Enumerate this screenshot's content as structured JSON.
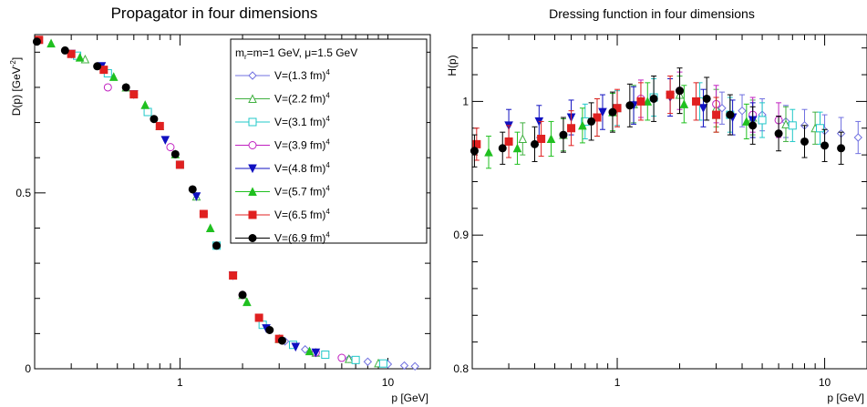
{
  "chart_data": [
    {
      "type": "scatter",
      "title": "Propagator in four dimensions",
      "xlabel": "p [GeV]",
      "ylabel_main": "D(p) [GeV",
      "ylabel_sup": "-2",
      "ylabel_end": "]",
      "x_scale": "log",
      "xlim": [
        0.2,
        16
      ],
      "ylim": [
        0,
        0.95
      ],
      "xticks": [
        {
          "v": 1,
          "label": "1"
        },
        {
          "v": 10,
          "label": "10"
        }
      ],
      "yticks": [
        {
          "v": 0,
          "label": "0"
        },
        {
          "v": 0.5,
          "label": "0.5"
        }
      ],
      "legend_position": "top-right",
      "legend_header": "m",
      "legend_header_sub": "r",
      "legend_header_rest": "=m=1 GeV, μ=1.5 GeV",
      "series": [
        {
          "name": "V=(1.3 fm)",
          "sup": "4",
          "color": "#7070e0",
          "marker": "diamond-open",
          "x": [
            3.2,
            4.0,
            5.0,
            6.5,
            8.0,
            10.0,
            12.0,
            13.5
          ],
          "y": [
            0.078,
            0.055,
            0.04,
            0.028,
            0.02,
            0.013,
            0.009,
            0.007
          ]
        },
        {
          "name": "V=(2.2 fm)",
          "sup": "4",
          "color": "#40b040",
          "marker": "triangle-open",
          "x": [
            0.35,
            0.55,
            0.8,
            1.2,
            2.0,
            3.0,
            4.5,
            6.5,
            9.0
          ],
          "y": [
            0.88,
            0.8,
            0.69,
            0.49,
            0.21,
            0.085,
            0.046,
            0.028,
            0.016
          ]
        },
        {
          "name": "V=(3.1 fm)",
          "sup": "4",
          "color": "#20c8c8",
          "marker": "square-open",
          "x": [
            0.32,
            0.45,
            0.7,
            1.0,
            1.5,
            2.5,
            3.5,
            5.0,
            7.0,
            9.5
          ],
          "y": [
            0.89,
            0.84,
            0.73,
            0.58,
            0.35,
            0.125,
            0.068,
            0.04,
            0.025,
            0.015
          ]
        },
        {
          "name": "V=(3.9 fm)",
          "sup": "4",
          "color": "#c020c0",
          "marker": "circle-open",
          "x": [
            0.45,
            0.6,
            0.9,
            1.3,
            2.0,
            3.0,
            4.5,
            6.0
          ],
          "y": [
            0.8,
            0.78,
            0.63,
            0.44,
            0.21,
            0.085,
            0.046,
            0.031
          ]
        },
        {
          "name": "V=(4.8 fm)",
          "sup": "4",
          "color": "#1010c0",
          "marker": "triangle-down",
          "x": [
            0.3,
            0.42,
            0.6,
            0.85,
            1.2,
            1.8,
            2.6,
            3.6,
            4.5
          ],
          "y": [
            0.895,
            0.86,
            0.78,
            0.65,
            0.49,
            0.265,
            0.115,
            0.062,
            0.046
          ]
        },
        {
          "name": "V=(5.7 fm)",
          "sup": "4",
          "color": "#20c020",
          "marker": "triangle-up",
          "x": [
            0.24,
            0.33,
            0.48,
            0.68,
            0.95,
            1.4,
            2.1,
            3.0,
            4.2
          ],
          "y": [
            0.925,
            0.885,
            0.83,
            0.75,
            0.61,
            0.4,
            0.19,
            0.085,
            0.05
          ]
        },
        {
          "name": "V=(6.5 fm)",
          "sup": "4",
          "color": "#e02020",
          "marker": "square",
          "x": [
            0.21,
            0.3,
            0.43,
            0.6,
            0.8,
            1.0,
            1.3,
            1.8,
            2.4,
            3.0
          ],
          "y": [
            0.935,
            0.895,
            0.85,
            0.78,
            0.69,
            0.58,
            0.44,
            0.265,
            0.145,
            0.085
          ]
        },
        {
          "name": "V=(6.9 fm)",
          "sup": "4",
          "color": "#000000",
          "marker": "circle",
          "x": [
            0.205,
            0.28,
            0.4,
            0.55,
            0.75,
            0.95,
            1.15,
            1.5,
            2.0,
            2.7,
            3.1
          ],
          "y": [
            0.93,
            0.905,
            0.86,
            0.8,
            0.71,
            0.61,
            0.51,
            0.35,
            0.21,
            0.11,
            0.08
          ]
        }
      ]
    },
    {
      "type": "scatter",
      "title": "Dressing function in four dimensions",
      "xlabel": "p [GeV]",
      "ylabel": "H(p)",
      "x_scale": "log",
      "xlim": [
        0.2,
        16
      ],
      "ylim": [
        0.8,
        1.05
      ],
      "xticks": [
        {
          "v": 1,
          "label": "1"
        },
        {
          "v": 10,
          "label": "10"
        }
      ],
      "yticks": [
        {
          "v": 0.8,
          "label": "0.8"
        },
        {
          "v": 0.9,
          "label": "0.9"
        },
        {
          "v": 1.0,
          "label": "1"
        }
      ],
      "series": [
        {
          "color": "#7070e0",
          "marker": "diamond-open",
          "x": [
            3.2,
            4.0,
            5.0,
            6.5,
            8.0,
            10.0,
            12.0,
            14.5
          ],
          "y": [
            0.995,
            0.993,
            0.99,
            0.985,
            0.982,
            0.978,
            0.976,
            0.973
          ],
          "err": [
            0.012,
            0.012,
            0.012,
            0.012,
            0.012,
            0.012,
            0.012,
            0.012
          ]
        },
        {
          "color": "#40b040",
          "marker": "triangle-open",
          "x": [
            0.35,
            0.55,
            0.8,
            1.2,
            2.0,
            3.0,
            4.5,
            6.5,
            9.0
          ],
          "y": [
            0.972,
            0.975,
            0.988,
            0.998,
            1.005,
            0.995,
            0.988,
            0.983,
            0.98
          ],
          "err": [
            0.012,
            0.012,
            0.014,
            0.014,
            0.014,
            0.014,
            0.013,
            0.013,
            0.012
          ]
        },
        {
          "color": "#20c8c8",
          "marker": "square-open",
          "x": [
            0.7,
            1.0,
            1.5,
            2.5,
            3.5,
            5.0,
            7.0,
            9.5
          ],
          "y": [
            0.985,
            0.995,
            1.003,
            1.0,
            0.99,
            0.986,
            0.982,
            0.98
          ],
          "err": [
            0.013,
            0.013,
            0.014,
            0.014,
            0.013,
            0.013,
            0.012,
            0.012
          ]
        },
        {
          "color": "#c020c0",
          "marker": "circle-open",
          "x": [
            1.3,
            2.0,
            3.0,
            4.5,
            6.0
          ],
          "y": [
            1.002,
            1.008,
            0.998,
            0.99,
            0.986
          ],
          "err": [
            0.014,
            0.014,
            0.014,
            0.013,
            0.013
          ]
        },
        {
          "color": "#1010c0",
          "marker": "triangle-down",
          "x": [
            0.3,
            0.42,
            0.6,
            0.85,
            1.2,
            1.8,
            2.6,
            3.6,
            4.5
          ],
          "y": [
            0.982,
            0.985,
            0.988,
            0.992,
            0.997,
            1.003,
            0.995,
            0.988,
            0.986
          ],
          "err": [
            0.012,
            0.012,
            0.013,
            0.013,
            0.014,
            0.014,
            0.014,
            0.013,
            0.013
          ]
        },
        {
          "color": "#20c020",
          "marker": "triangle-up",
          "x": [
            0.24,
            0.33,
            0.48,
            0.68,
            0.95,
            1.4,
            2.1,
            3.0,
            4.2
          ],
          "y": [
            0.962,
            0.965,
            0.972,
            0.982,
            0.992,
            1.0,
            0.998,
            0.99,
            0.985
          ],
          "err": [
            0.012,
            0.012,
            0.013,
            0.013,
            0.014,
            0.014,
            0.014,
            0.013,
            0.013
          ]
        },
        {
          "color": "#e02020",
          "marker": "square",
          "x": [
            0.21,
            0.3,
            0.43,
            0.6,
            0.8,
            1.0,
            1.3,
            1.8,
            2.4,
            3.0
          ],
          "y": [
            0.968,
            0.97,
            0.972,
            0.98,
            0.988,
            0.995,
            1.0,
            1.005,
            1.0,
            0.99
          ],
          "err": [
            0.012,
            0.012,
            0.013,
            0.013,
            0.014,
            0.014,
            0.014,
            0.014,
            0.014,
            0.013
          ]
        },
        {
          "color": "#000000",
          "marker": "circle",
          "x": [
            0.205,
            0.28,
            0.4,
            0.55,
            0.75,
            0.95,
            1.15,
            1.5,
            2.0,
            2.7,
            3.5,
            4.5,
            6.0,
            8.0,
            10.0,
            12.0
          ],
          "y": [
            0.963,
            0.965,
            0.968,
            0.975,
            0.985,
            0.992,
            0.997,
            1.002,
            1.008,
            1.002,
            0.99,
            0.982,
            0.976,
            0.97,
            0.967,
            0.965
          ],
          "err": [
            0.012,
            0.012,
            0.013,
            0.013,
            0.014,
            0.015,
            0.016,
            0.017,
            0.017,
            0.016,
            0.015,
            0.014,
            0.013,
            0.012,
            0.012,
            0.012
          ]
        }
      ]
    }
  ]
}
